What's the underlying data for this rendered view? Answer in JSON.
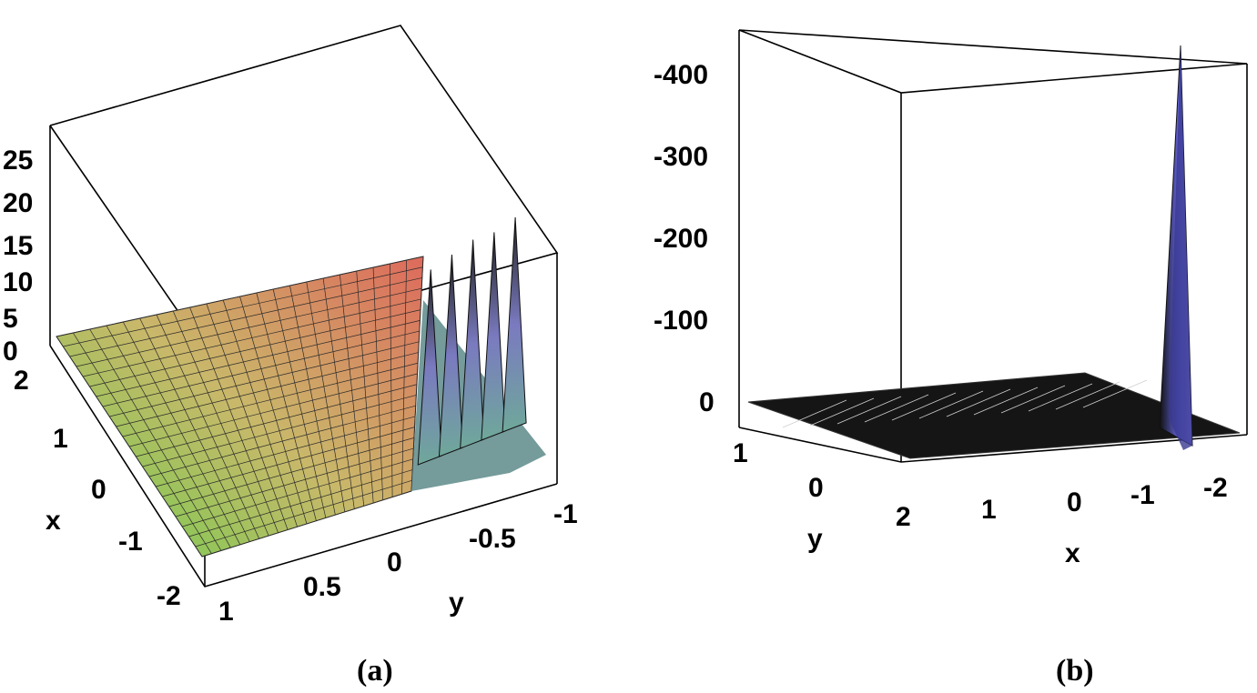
{
  "chart_data": [
    {
      "type": "surface3d",
      "panel_label": "(a)",
      "x_axis": {
        "label": "x",
        "range": [
          -2,
          2
        ],
        "ticks": [
          "2",
          "1",
          "0",
          "-1",
          "-2"
        ]
      },
      "y_axis": {
        "label": "y",
        "range": [
          -1,
          1
        ],
        "ticks": [
          "1",
          "0.5",
          "0",
          "-0.5",
          "-1"
        ]
      },
      "z_axis": {
        "label": "",
        "range": [
          0,
          28
        ],
        "ticks": [
          "25",
          "20",
          "15",
          "10",
          "5",
          "0"
        ]
      },
      "surface": "smooth gradient plane (green to red) rising toward x=2, with sharp oscillating spikes near y≈-0.2 to -0.8",
      "peaks": [
        {
          "y": -0.15,
          "z": 12
        },
        {
          "y": -0.3,
          "z": 14
        },
        {
          "y": -0.45,
          "z": 16
        },
        {
          "y": -0.6,
          "z": 17
        },
        {
          "y": -0.75,
          "z": 19
        }
      ],
      "colors": {
        "low": "#7fd05a",
        "mid": "#c8b46a",
        "high": "#d86a5a",
        "spike": "#6a6aa8"
      }
    },
    {
      "type": "surface3d",
      "panel_label": "(b)",
      "x_axis": {
        "label": "x",
        "range": [
          -2,
          2
        ],
        "ticks": [
          "2",
          "1",
          "0",
          "-1",
          "-2"
        ]
      },
      "y_axis": {
        "label": "y",
        "range": [
          -1,
          1
        ],
        "ticks": [
          "1",
          "0"
        ]
      },
      "z_axis": {
        "label": "",
        "range": [
          -450,
          0
        ],
        "ticks": [
          "-400",
          "-300",
          "-200",
          "-100",
          "0"
        ]
      },
      "surface": "dark near-flat sheet at z≈0 with a single narrow spike near x≈-1.2",
      "peaks": [
        {
          "x": -1.2,
          "z": -430
        }
      ],
      "colors": {
        "sheet": "#1a1a1a",
        "spike": "#5a5ad8"
      }
    }
  ]
}
